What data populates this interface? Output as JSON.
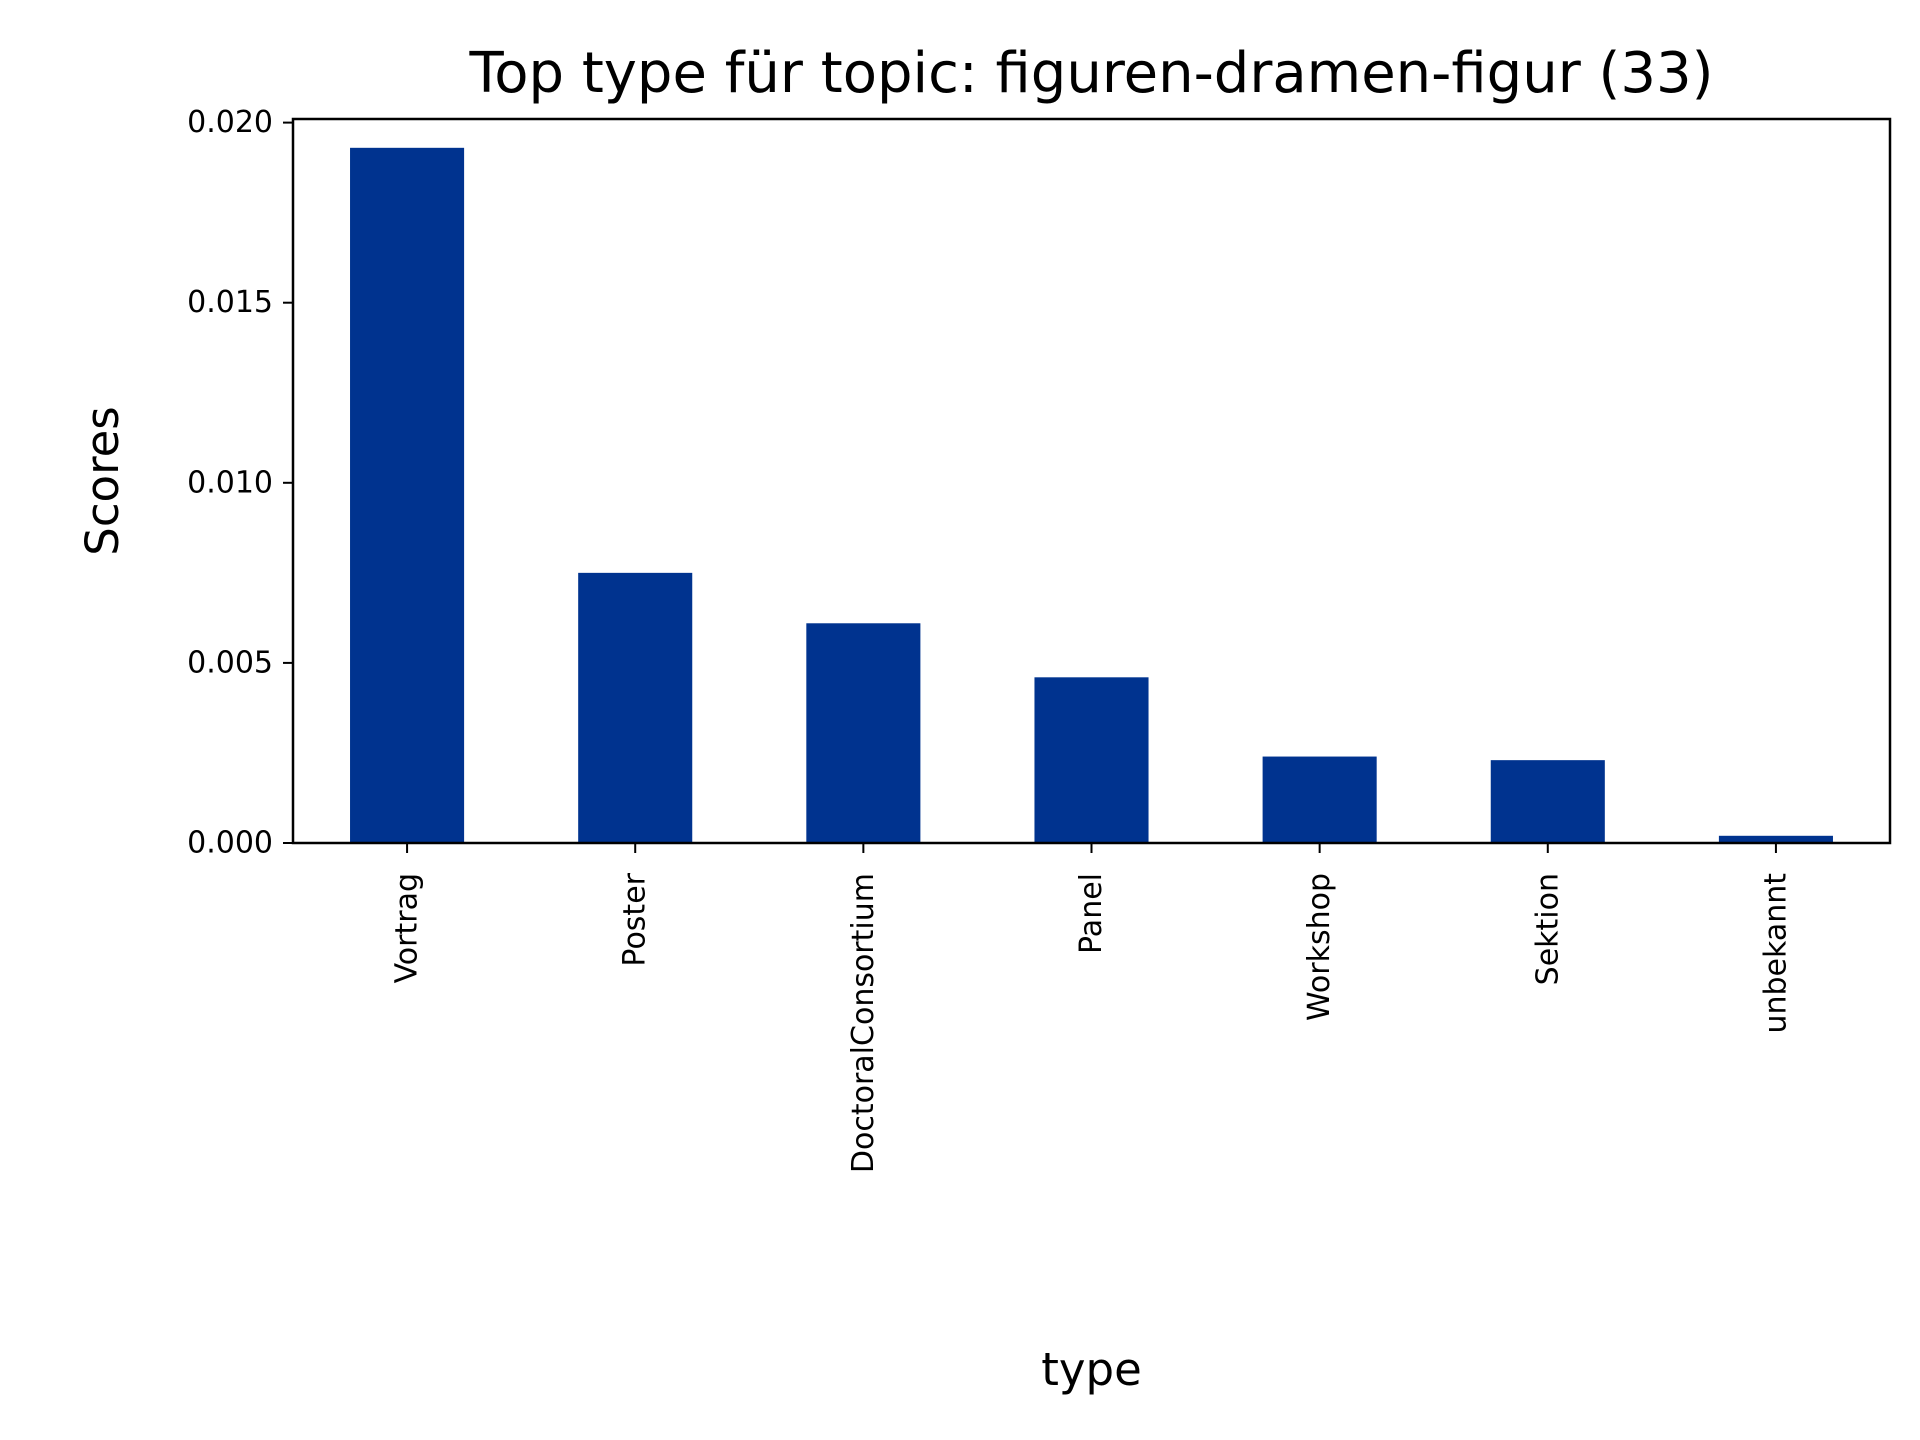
{
  "chart_data": {
    "type": "bar",
    "title": "Top type für topic: figuren-dramen-figur (33)",
    "xlabel": "type",
    "ylabel": "Scores",
    "categories": [
      "Vortrag",
      "Poster",
      "DoctoralConsortium",
      "Panel",
      "Workshop",
      "Sektion",
      "unbekannt"
    ],
    "values": [
      0.0193,
      0.0075,
      0.0061,
      0.0046,
      0.0024,
      0.0023,
      0.0002
    ],
    "ylim": [
      0,
      0.0201
    ],
    "yticks": [
      "0.000",
      "0.005",
      "0.010",
      "0.015",
      "0.020"
    ],
    "grid": false,
    "bar_color": "#00338f"
  }
}
